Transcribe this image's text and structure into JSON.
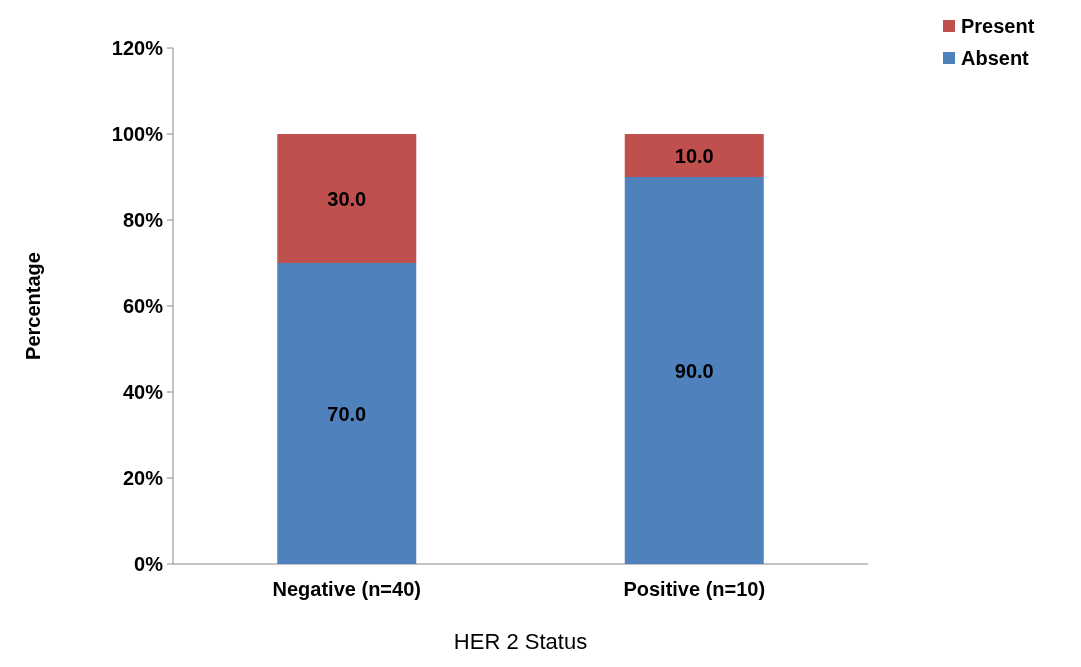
{
  "chart_data": {
    "type": "bar",
    "stacked": true,
    "xlabel": "HER 2 Status",
    "ylabel": "Percentage",
    "categories": [
      "Negative (n=40)",
      "Positive (n=10)"
    ],
    "series": [
      {
        "name": "Absent",
        "color": "#4f81bd",
        "values": [
          70.0,
          90.0
        ],
        "value_labels": [
          "70.0",
          "90.0"
        ]
      },
      {
        "name": "Present",
        "color": "#c0504d",
        "values": [
          30.0,
          10.0
        ],
        "value_labels": [
          "30.0",
          "10.0"
        ]
      }
    ],
    "ylim": [
      0,
      120
    ],
    "yticks": [
      {
        "value": 0,
        "label": "0%"
      },
      {
        "value": 20,
        "label": "20%"
      },
      {
        "value": 40,
        "label": "40%"
      },
      {
        "value": 60,
        "label": "60%"
      },
      {
        "value": 80,
        "label": "80%"
      },
      {
        "value": 100,
        "label": "100%"
      },
      {
        "value": 120,
        "label": "120%"
      }
    ],
    "legend": "top right",
    "grid": false
  }
}
